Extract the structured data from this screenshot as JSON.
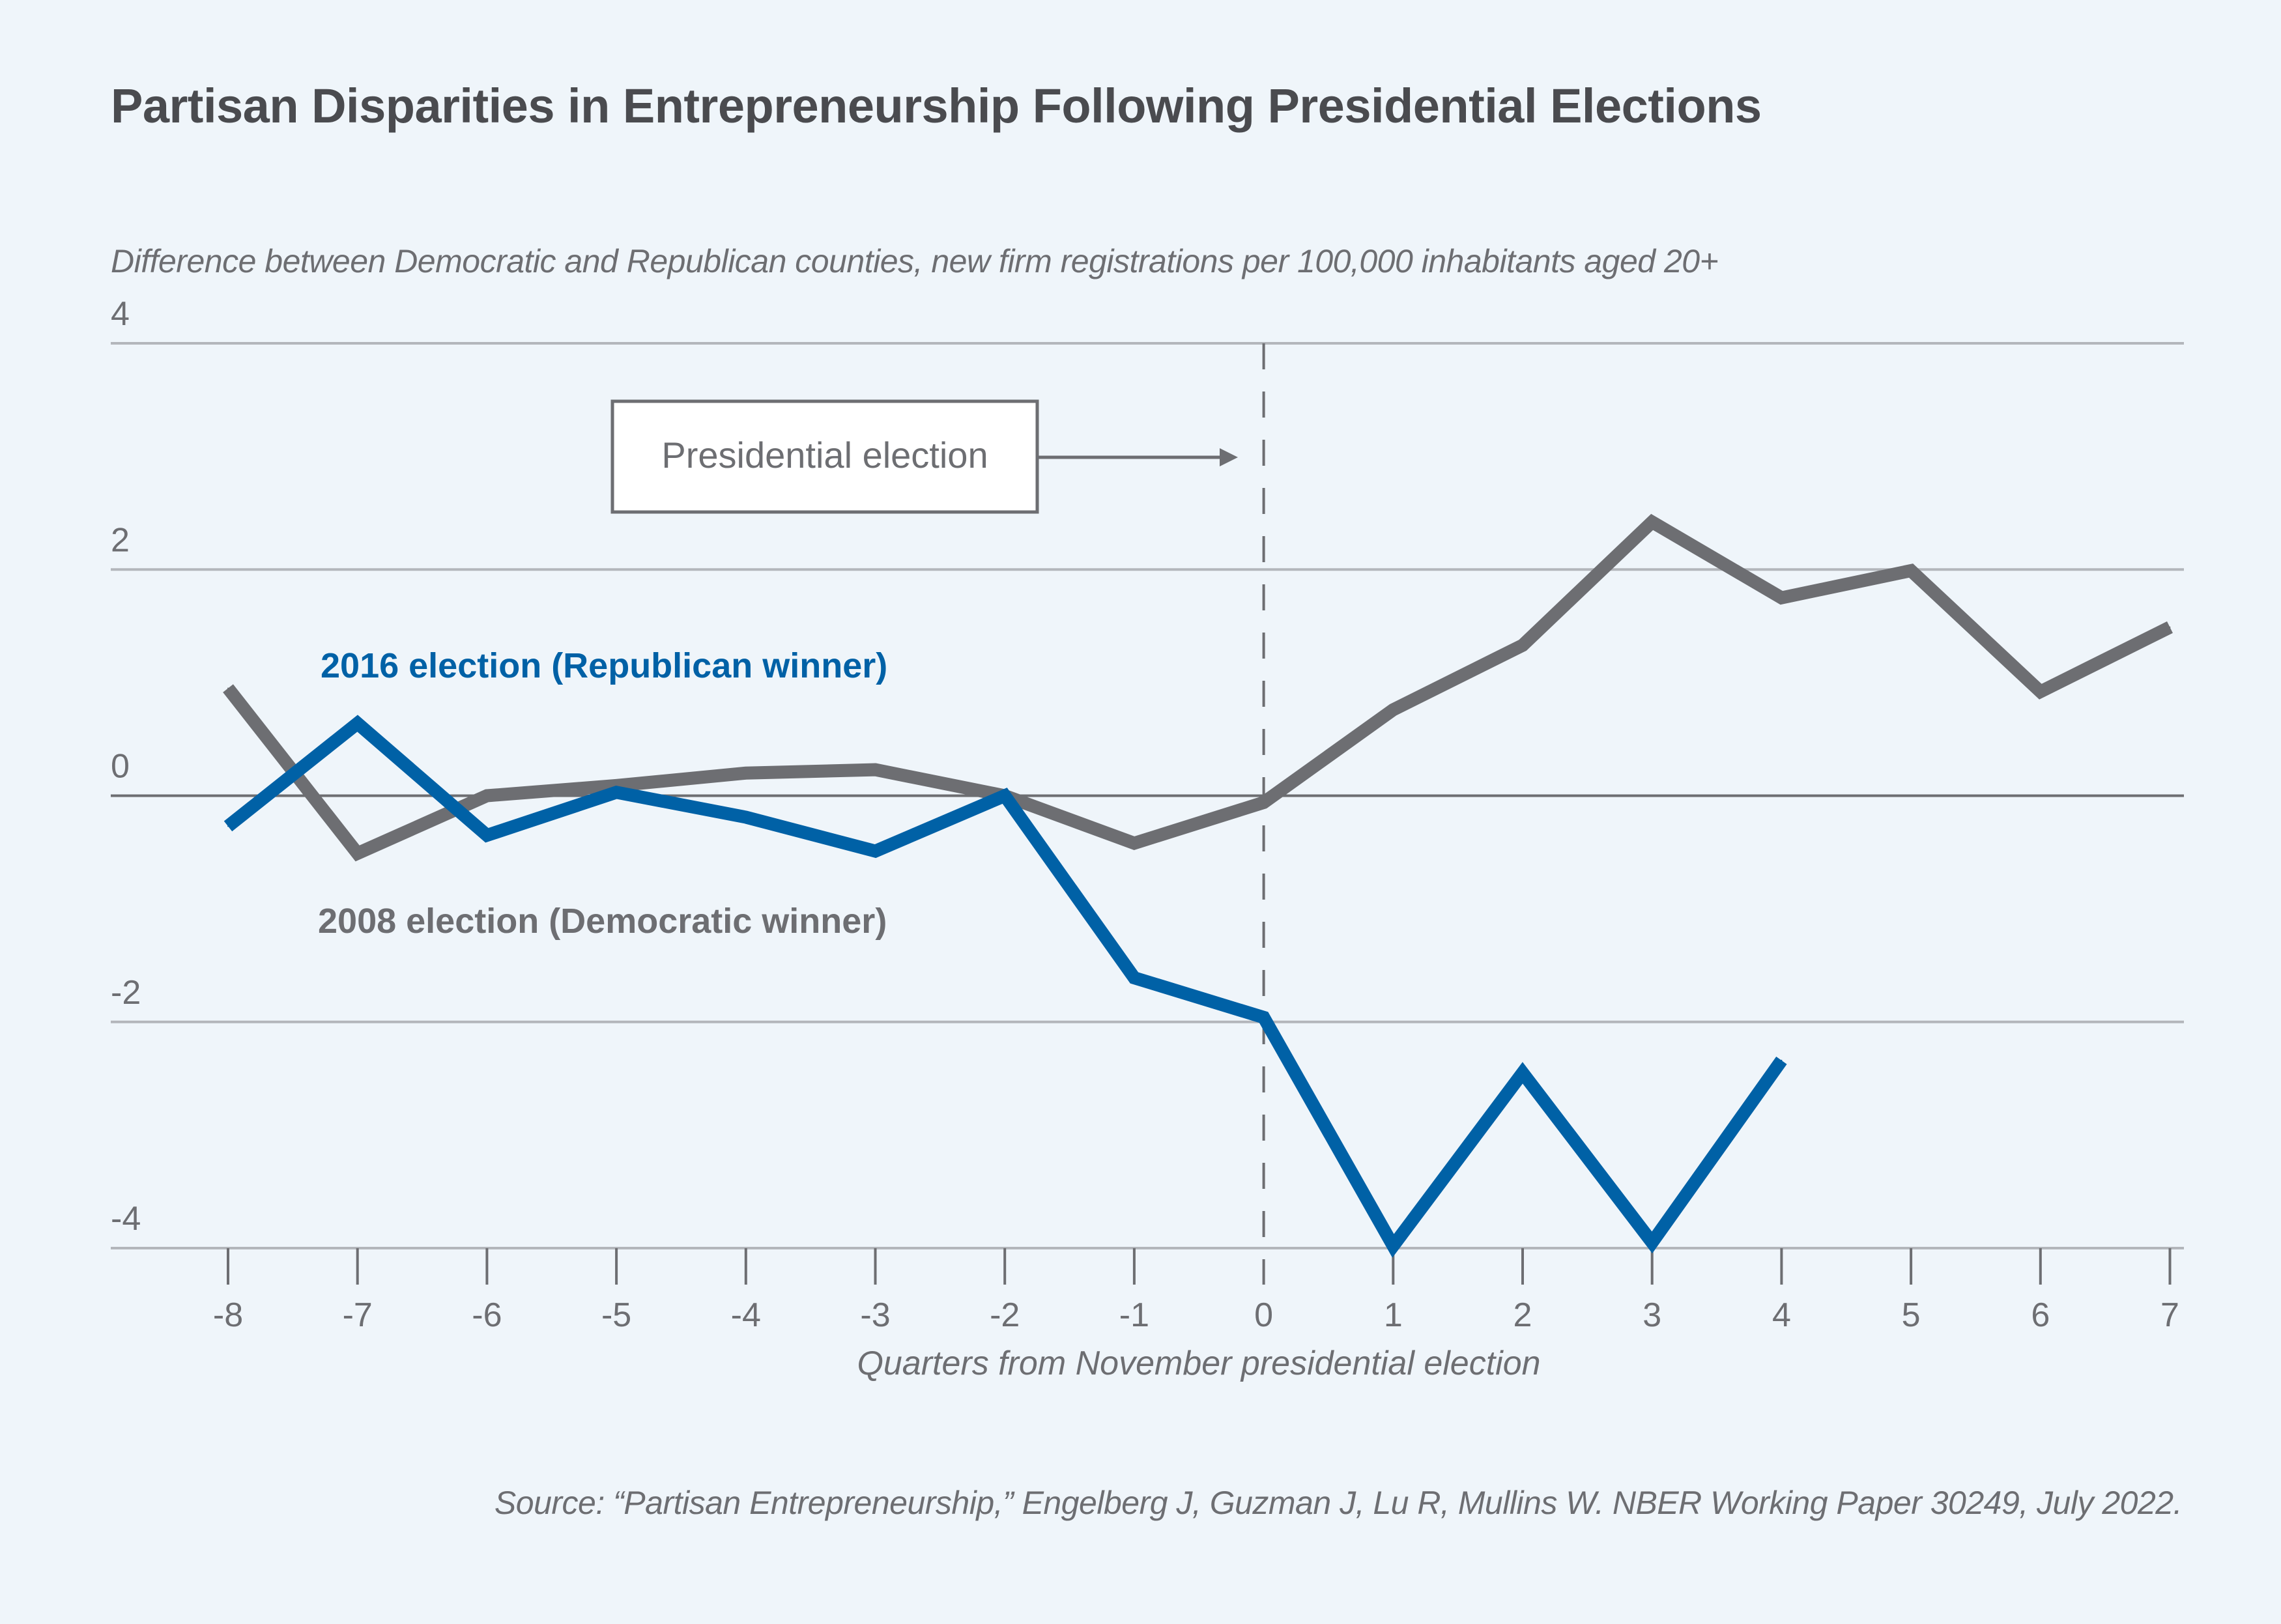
{
  "chart_data": {
    "type": "line",
    "title": "Partisan Disparities in Entrepreneurship Following Presidential Elections",
    "subtitle": "Difference between Democratic and Republican counties, new firm registrations per 100,000 inhabitants aged 20+",
    "xlabel": "Quarters from November presidential election",
    "ylabel": "",
    "x": [
      -8,
      -7,
      -6,
      -5,
      -4,
      -3,
      -2,
      -1,
      0,
      1,
      2,
      3,
      4,
      5,
      6,
      7
    ],
    "xticks": [
      "-8",
      "-7",
      "-6",
      "-5",
      "-4",
      "-3",
      "-2",
      "-1",
      "0",
      "1",
      "2",
      "3",
      "4",
      "5",
      "6",
      "7"
    ],
    "yticks": [
      "4",
      "2",
      "0",
      "-2",
      "-4"
    ],
    "ylim": [
      -4,
      4
    ],
    "xlim": [
      -8,
      7
    ],
    "grid": true,
    "series": [
      {
        "name": "2016 election (Republican winner)",
        "color": "#0061a6",
        "values": [
          -0.27,
          0.64,
          -0.35,
          0.03,
          -0.19,
          -0.49,
          0.0,
          -1.61,
          -1.96,
          -3.98,
          -2.45,
          -3.95,
          -2.34,
          null,
          null,
          null
        ]
      },
      {
        "name": "2008 election (Democratic winner)",
        "color": "#6d6e72",
        "values": [
          0.95,
          -0.51,
          0.0,
          0.09,
          0.2,
          0.23,
          0.0,
          -0.42,
          -0.06,
          0.76,
          1.33,
          2.42,
          1.75,
          1.99,
          0.92,
          1.49
        ]
      }
    ],
    "annotations": [
      {
        "text": "Presidential election",
        "x": 0,
        "type": "vertical-dashed-line"
      }
    ],
    "source": "Source: “Partisan Entrepreneurship,” Engelberg J, Guzman J, Lu R, Mullins W. NBER Working Paper 30249, July 2022."
  }
}
